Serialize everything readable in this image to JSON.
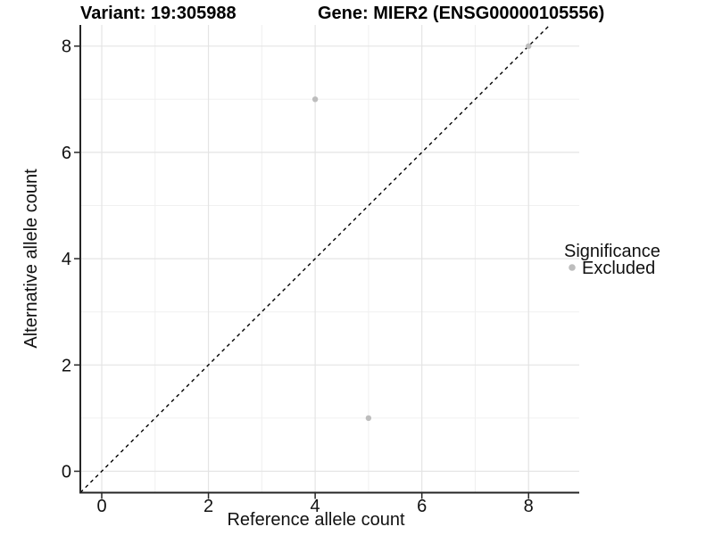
{
  "figure": {
    "title_left": "Variant: 19:305988",
    "title_right": "Gene: MIER2 (ENSG00000105556)"
  },
  "colors": {
    "point": "#bdbdbd",
    "axis_line": "#262626",
    "grid_major": "#e4e4e4",
    "grid_minor": "#f0f0f0",
    "reference_line": "#000000",
    "text": "#000000"
  },
  "chart_data": {
    "type": "scatter",
    "title_left": "Variant: 19:305988",
    "title_right": "Gene: MIER2 (ENSG00000105556)",
    "xlabel": "Reference allele count",
    "ylabel": "Alternative allele count",
    "x_ticks": [
      0,
      2,
      4,
      6,
      8
    ],
    "y_ticks": [
      0,
      2,
      4,
      6,
      8
    ],
    "xlim": [
      -0.4,
      8.95
    ],
    "ylim": [
      -0.4,
      8.4
    ],
    "grid": true,
    "series": [
      {
        "name": "Excluded",
        "color": "#bdbdbd",
        "points": [
          {
            "x": 4,
            "y": 7
          },
          {
            "x": 5,
            "y": 1
          },
          {
            "x": 8,
            "y": 8
          }
        ]
      }
    ],
    "reference_line": {
      "style": "dashed",
      "equation": "y = x",
      "color": "#000000"
    },
    "legend": {
      "position": "right",
      "title": "Significance",
      "entries": [
        {
          "label": "Excluded",
          "color": "#bdbdbd"
        }
      ]
    }
  }
}
